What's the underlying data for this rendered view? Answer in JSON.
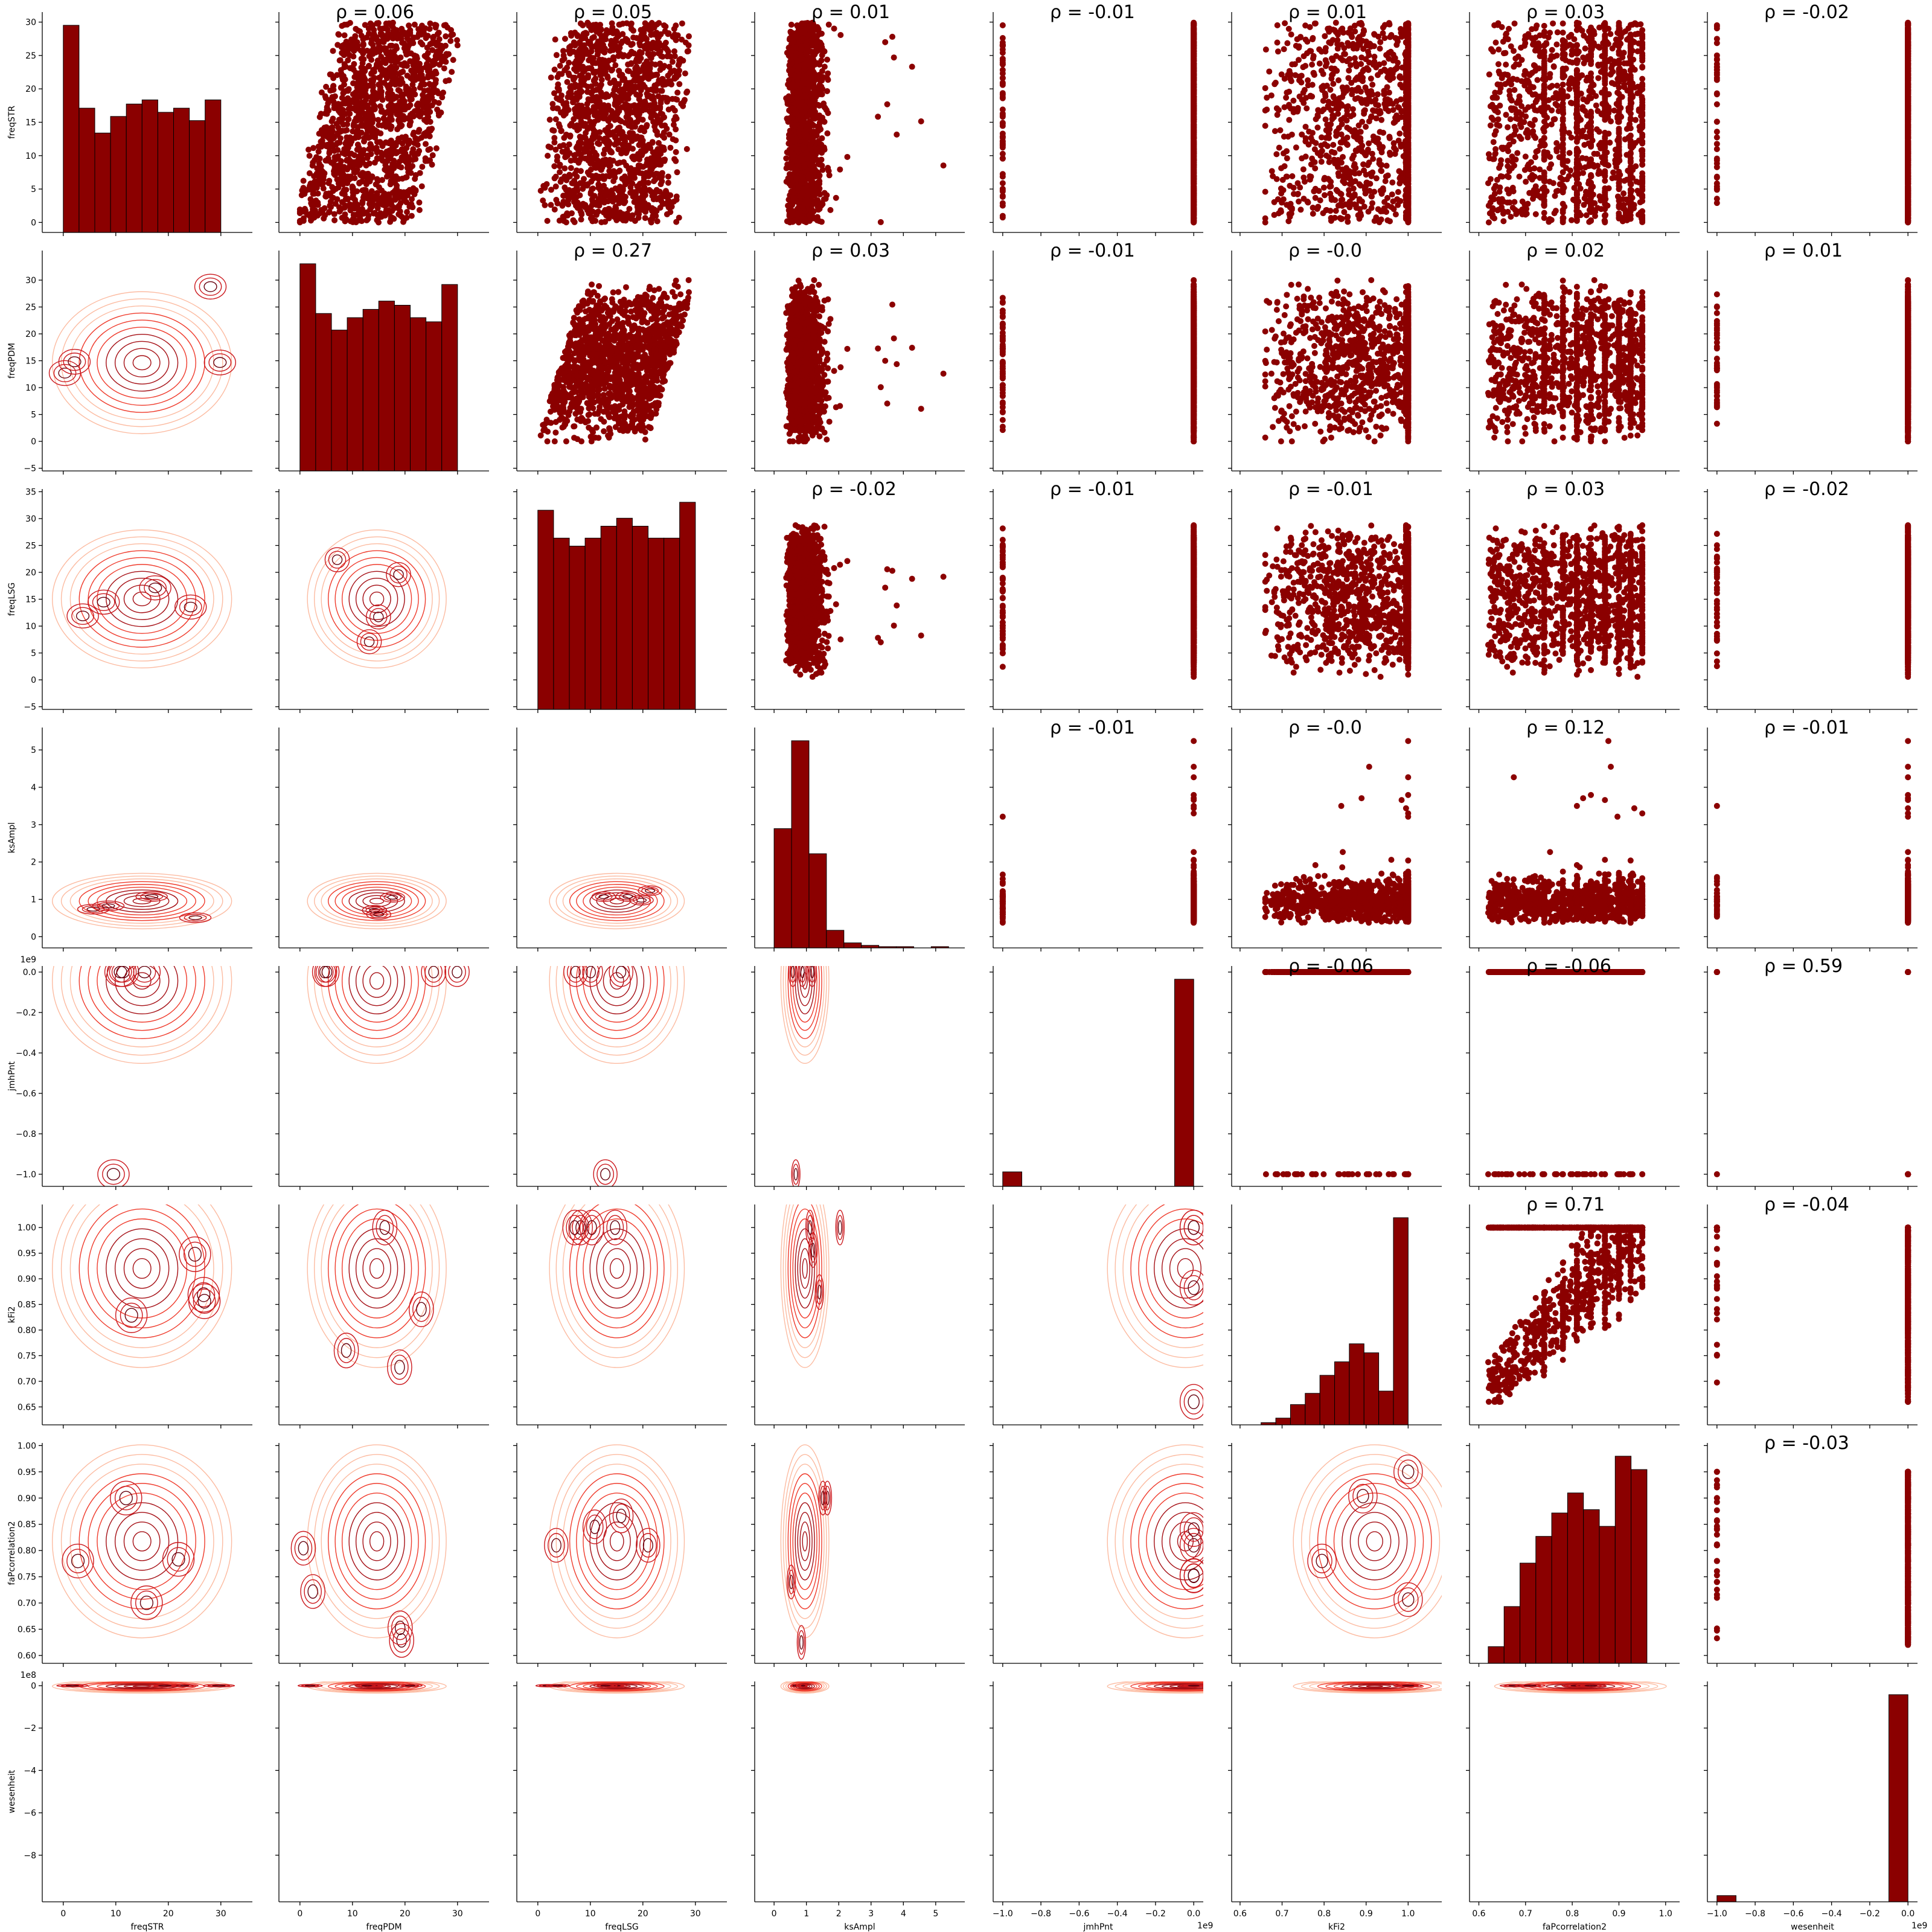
{
  "chart_data": {
    "type": "pairplot",
    "variables": [
      "freqSTR",
      "freqPDM",
      "freqLSG",
      "ksAmpl",
      "jmhPnt",
      "kFi2",
      "faPcorrelation2",
      "wesenheit"
    ],
    "colors": {
      "points": "#8b0000",
      "bars": "#8b0000",
      "kde_dark": "#67000d",
      "kde_light": "#fcbba1"
    },
    "x_axes": [
      {
        "lim": [
          -4,
          36
        ],
        "ticks": [
          "0",
          "10",
          "20",
          "30"
        ],
        "tick_values": [
          0,
          10,
          20,
          30
        ],
        "offset": ""
      },
      {
        "lim": [
          -4,
          36
        ],
        "ticks": [
          "0",
          "10",
          "20",
          "30"
        ],
        "tick_values": [
          0,
          10,
          20,
          30
        ],
        "offset": ""
      },
      {
        "lim": [
          -4,
          36
        ],
        "ticks": [
          "0",
          "10",
          "20",
          "30"
        ],
        "tick_values": [
          0,
          10,
          20,
          30
        ],
        "offset": ""
      },
      {
        "lim": [
          -0.6,
          5.9
        ],
        "ticks": [
          "0",
          "1",
          "2",
          "3",
          "4",
          "5"
        ],
        "tick_values": [
          0,
          1,
          2,
          3,
          4,
          5
        ],
        "offset": ""
      },
      {
        "lim": [
          -1.05,
          0.05
        ],
        "ticks": [
          "−1.0",
          "−0.8",
          "−0.6",
          "−0.4",
          "−0.2",
          "0.0"
        ],
        "tick_values": [
          -1.0,
          -0.8,
          -0.6,
          -0.4,
          -0.2,
          0.0
        ],
        "offset": "1e9"
      },
      {
        "lim": [
          0.58,
          1.08
        ],
        "ticks": [
          "0.6",
          "0.7",
          "0.8",
          "0.9",
          "1.0"
        ],
        "tick_values": [
          0.6,
          0.7,
          0.8,
          0.9,
          1.0
        ],
        "offset": ""
      },
      {
        "lim": [
          0.58,
          1.03
        ],
        "ticks": [
          "0.6",
          "0.7",
          "0.8",
          "0.9",
          "1.0"
        ],
        "tick_values": [
          0.6,
          0.7,
          0.8,
          0.9,
          1.0
        ],
        "offset": ""
      },
      {
        "lim": [
          -1.05,
          0.05
        ],
        "ticks": [
          "−1.0",
          "−0.8",
          "−0.6",
          "−0.4",
          "−0.2",
          "0.0"
        ],
        "tick_values": [
          -1.0,
          -0.8,
          -0.6,
          -0.4,
          -0.2,
          0.0
        ],
        "offset": "1e9"
      }
    ],
    "y_axes": [
      {
        "lim": [
          -1.5,
          31.5
        ],
        "ticks": [
          "0",
          "5",
          "10",
          "15",
          "20",
          "25",
          "30"
        ],
        "tick_values": [
          0,
          5,
          10,
          15,
          20,
          25,
          30
        ],
        "offset": ""
      },
      {
        "lim": [
          -5.5,
          35.5
        ],
        "ticks": [
          "−5",
          "0",
          "5",
          "10",
          "15",
          "20",
          "25",
          "30"
        ],
        "tick_values": [
          -5,
          0,
          5,
          10,
          15,
          20,
          25,
          30
        ],
        "offset": ""
      },
      {
        "lim": [
          -5.5,
          35.5
        ],
        "ticks": [
          "−5",
          "0",
          "5",
          "10",
          "15",
          "20",
          "25",
          "30",
          "35"
        ],
        "tick_values": [
          -5,
          0,
          5,
          10,
          15,
          20,
          25,
          30,
          35
        ],
        "offset": ""
      },
      {
        "lim": [
          -0.3,
          5.6
        ],
        "ticks": [
          "0",
          "1",
          "2",
          "3",
          "4",
          "5"
        ],
        "tick_values": [
          0,
          1,
          2,
          3,
          4,
          5
        ],
        "offset": ""
      },
      {
        "lim": [
          -1.06,
          0.03
        ],
        "ticks": [
          "−1.0",
          "−0.8",
          "−0.6",
          "−0.4",
          "−0.2",
          "0.0"
        ],
        "tick_values": [
          -1.0,
          -0.8,
          -0.6,
          -0.4,
          -0.2,
          0.0
        ],
        "offset": "1e9"
      },
      {
        "lim": [
          0.615,
          1.045
        ],
        "ticks": [
          "0.65",
          "0.70",
          "0.75",
          "0.80",
          "0.85",
          "0.90",
          "0.95",
          "1.00"
        ],
        "tick_values": [
          0.65,
          0.7,
          0.75,
          0.8,
          0.85,
          0.9,
          0.95,
          1.0
        ],
        "offset": ""
      },
      {
        "lim": [
          0.585,
          1.005
        ],
        "ticks": [
          "0.60",
          "0.65",
          "0.70",
          "0.75",
          "0.80",
          "0.85",
          "0.90",
          "0.95",
          "1.00"
        ],
        "tick_values": [
          0.6,
          0.65,
          0.7,
          0.75,
          0.8,
          0.85,
          0.9,
          0.95,
          1.0
        ],
        "offset": ""
      },
      {
        "lim": [
          -10.2,
          0.2
        ],
        "ticks": [
          "−8",
          "−6",
          "−4",
          "−2",
          "0"
        ],
        "tick_values": [
          -8,
          -6,
          -4,
          -2,
          0
        ],
        "offset": "1e8"
      }
    ],
    "histograms": [
      {
        "bins": [
          0,
          3,
          6,
          9,
          12,
          15,
          18,
          21,
          24,
          27,
          30
        ],
        "counts": [
          250,
          150,
          120,
          140,
          155,
          160,
          145,
          150,
          135,
          160
        ]
      },
      {
        "bins": [
          0,
          3,
          6,
          9,
          12,
          15,
          18,
          21,
          24,
          27,
          30
        ],
        "counts": [
          250,
          190,
          170,
          185,
          195,
          205,
          200,
          185,
          180,
          225
        ]
      },
      {
        "bins": [
          0,
          3,
          6,
          9,
          12,
          15,
          18,
          21,
          24,
          27,
          30
        ],
        "counts": [
          250,
          215,
          205,
          215,
          230,
          240,
          230,
          215,
          215,
          260
        ]
      },
      {
        "bins": [
          0,
          0.54,
          1.08,
          1.62,
          2.16,
          2.7,
          3.24,
          3.78,
          4.32,
          4.86,
          5.4
        ],
        "counts": [
          95,
          165,
          75,
          14,
          4,
          2,
          1,
          1,
          0,
          1
        ]
      },
      {
        "bins": [
          -1.0,
          -0.9,
          -0.8,
          -0.7,
          -0.6,
          -0.5,
          -0.4,
          -0.3,
          -0.2,
          -0.1,
          0.0
        ],
        "counts": [
          14,
          0,
          0,
          0,
          0,
          0,
          0,
          0,
          0,
          200
        ]
      },
      {
        "bins": [
          0.65,
          0.685,
          0.72,
          0.755,
          0.79,
          0.825,
          0.86,
          0.895,
          0.93,
          0.965,
          1.0
        ],
        "counts": [
          1,
          3,
          9,
          14,
          22,
          28,
          36,
          32,
          15,
          92
        ]
      },
      {
        "bins": [
          0.62,
          0.654,
          0.688,
          0.722,
          0.756,
          0.79,
          0.824,
          0.858,
          0.892,
          0.926,
          0.96
        ],
        "counts": [
          5,
          17,
          30,
          38,
          45,
          51,
          46,
          41,
          62,
          58
        ]
      },
      {
        "bins": [
          -1.0,
          -0.9,
          -0.8,
          -0.7,
          -0.6,
          -0.5,
          -0.4,
          -0.3,
          -0.2,
          -0.1,
          0.0
        ],
        "counts": [
          6,
          0,
          0,
          0,
          0,
          0,
          0,
          0,
          0,
          200
        ]
      }
    ],
    "correlations": [
      {
        "row": 0,
        "col": 1,
        "label": "ρ = 0.06"
      },
      {
        "row": 0,
        "col": 2,
        "label": "ρ = 0.05"
      },
      {
        "row": 0,
        "col": 3,
        "label": "ρ = 0.01"
      },
      {
        "row": 0,
        "col": 4,
        "label": "ρ = -0.01"
      },
      {
        "row": 0,
        "col": 5,
        "label": "ρ = 0.01"
      },
      {
        "row": 0,
        "col": 6,
        "label": "ρ = 0.03"
      },
      {
        "row": 0,
        "col": 7,
        "label": "ρ = -0.02"
      },
      {
        "row": 1,
        "col": 2,
        "label": "ρ = 0.27"
      },
      {
        "row": 1,
        "col": 3,
        "label": "ρ = 0.03"
      },
      {
        "row": 1,
        "col": 4,
        "label": "ρ = -0.01"
      },
      {
        "row": 1,
        "col": 5,
        "label": "ρ = -0.0"
      },
      {
        "row": 1,
        "col": 6,
        "label": "ρ = 0.02"
      },
      {
        "row": 1,
        "col": 7,
        "label": "ρ = 0.01"
      },
      {
        "row": 2,
        "col": 3,
        "label": "ρ = -0.02"
      },
      {
        "row": 2,
        "col": 4,
        "label": "ρ = -0.01"
      },
      {
        "row": 2,
        "col": 5,
        "label": "ρ = -0.01"
      },
      {
        "row": 2,
        "col": 6,
        "label": "ρ = 0.03"
      },
      {
        "row": 2,
        "col": 7,
        "label": "ρ = -0.02"
      },
      {
        "row": 3,
        "col": 4,
        "label": "ρ = -0.01"
      },
      {
        "row": 3,
        "col": 5,
        "label": "ρ = -0.0"
      },
      {
        "row": 3,
        "col": 6,
        "label": "ρ = 0.12"
      },
      {
        "row": 3,
        "col": 7,
        "label": "ρ = -0.01"
      },
      {
        "row": 4,
        "col": 5,
        "label": "ρ = -0.06"
      },
      {
        "row": 4,
        "col": 6,
        "label": "ρ = -0.06"
      },
      {
        "row": 4,
        "col": 7,
        "label": "ρ = 0.59"
      },
      {
        "row": 5,
        "col": 6,
        "label": "ρ = 0.71"
      },
      {
        "row": 5,
        "col": 7,
        "label": "ρ = -0.04"
      },
      {
        "row": 6,
        "col": 7,
        "label": "ρ = -0.03"
      }
    ],
    "upper_triangle": "scatter",
    "lower_triangle": "kde_contour",
    "diagonal": "histogram",
    "grid": false
  }
}
